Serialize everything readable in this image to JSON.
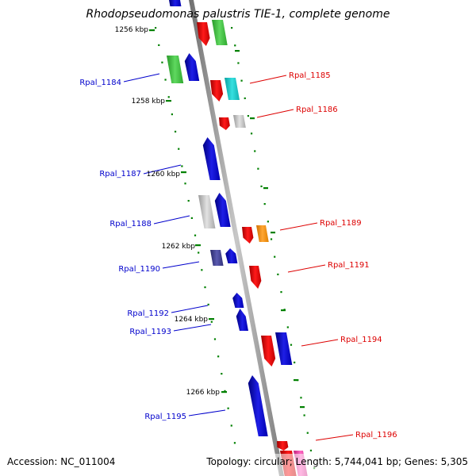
{
  "title": "Rhodopseudomonas palustris TIE-1, complete genome",
  "accession": "Accession: NC_011004",
  "topology": "Topology: circular; Length: 5,744,041 bp; Genes: 5,305",
  "colors": {
    "forward_label": "#0000cc",
    "reverse_label": "#dd0000",
    "backbone": "#8c8c8c",
    "tick": "#008000"
  },
  "kbp_labels": [
    "1256 kbp",
    "1258 kbp",
    "1260 kbp",
    "1262 kbp",
    "1264 kbp",
    "1266 kbp"
  ],
  "gene_labels": {
    "forward": [
      "Rpal_1184",
      "Rpal_1187",
      "Rpal_1188",
      "Rpal_1190",
      "Rpal_1192",
      "Rpal_1193",
      "Rpal_1195"
    ],
    "reverse": [
      "Rpal_1185",
      "Rpal_1186",
      "Rpal_1189",
      "Rpal_1191",
      "Rpal_1194",
      "Rpal_1196"
    ]
  }
}
